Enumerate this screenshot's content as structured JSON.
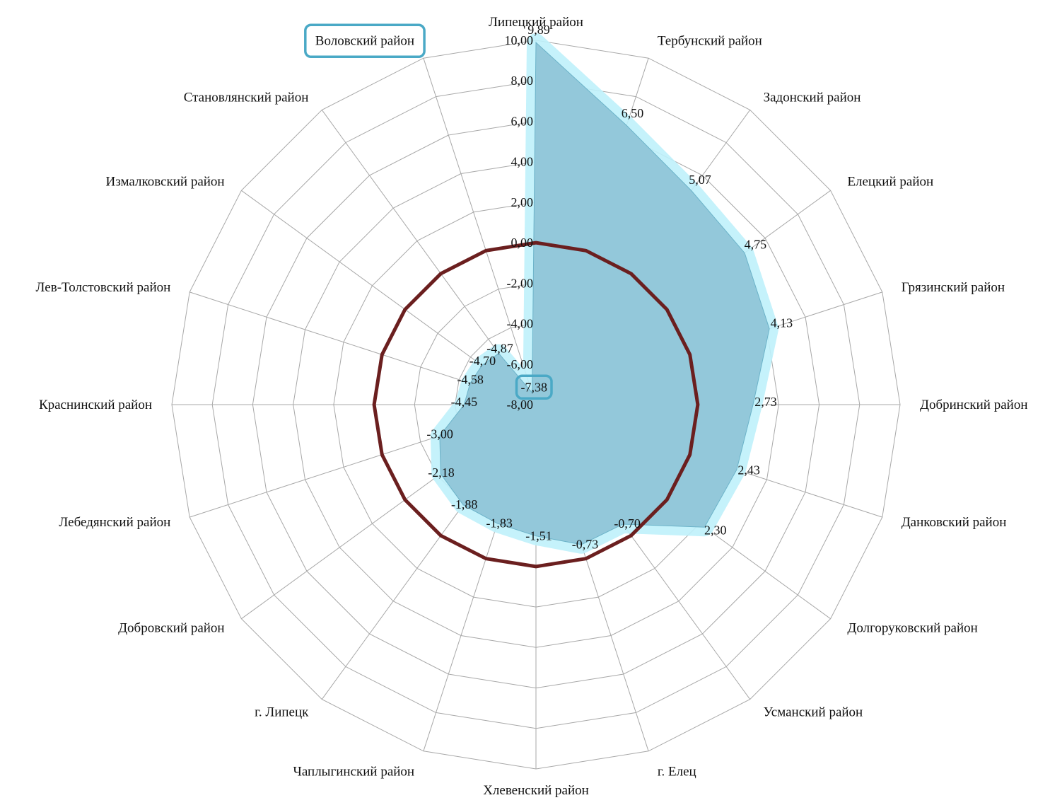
{
  "chart_data": {
    "type": "radar",
    "categories": [
      "Липецкий район",
      "Тербунский район",
      "Задонский район",
      "Елецкий район",
      "Грязинский район",
      "Добринский район",
      "Данковский район",
      "Долгоруковский район",
      "Усманский район",
      "г. Елец",
      "Хлевенский район",
      "Чаплыгинский район",
      "г. Липецк",
      "Добровский район",
      "Лебедянский район",
      "Краснинский район",
      "Лев-Толстовский район",
      "Измалковский район",
      "Становлянский район",
      "Воловский район"
    ],
    "values": [
      9.89,
      6.5,
      5.07,
      4.75,
      4.13,
      2.73,
      2.43,
      2.3,
      -0.7,
      -0.73,
      -1.51,
      -1.83,
      -1.88,
      -2.18,
      -3.0,
      -4.45,
      -4.58,
      -4.7,
      -4.87,
      -7.38
    ],
    "data_labels": [
      "9,89",
      "6,50",
      "5,07",
      "4,75",
      "4,13",
      "2,73",
      "2,43",
      "2,30",
      "-0,70",
      "-0,73",
      "-1,51",
      "-1,83",
      "-1,88",
      "-2,18",
      "-3,00",
      "-4,45",
      "-4,58",
      "-4,70",
      "-4,87",
      "-7,38"
    ],
    "r_ticks": [
      "10,00",
      "8,00",
      "6,00",
      "4,00",
      "2,00",
      "0,00",
      "-2,00",
      "-4,00",
      "-6,00",
      "-8,00"
    ],
    "r_min": -8,
    "r_max": 10,
    "reference_line_value": 0,
    "highlighted_category": "Воловский район",
    "colors": {
      "area_fill": "#93c8da",
      "area_glow": "#aeeaf8",
      "zero_line": "#6b1f1f",
      "grid": "#a8a8a8",
      "highlight_box": "#4aa9c6"
    }
  }
}
